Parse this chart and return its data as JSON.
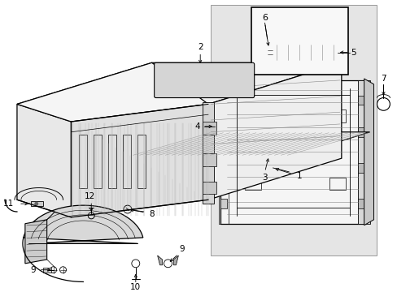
{
  "background_color": "#ffffff",
  "line_color": "#000000",
  "text_color": "#000000",
  "fig_width": 4.89,
  "fig_height": 3.6,
  "dpi": 100,
  "gray_bg": "#e8e8e8",
  "gray_mid": "#cccccc",
  "gray_light": "#f0f0f0",
  "gray_inset": "#e0e0e0"
}
